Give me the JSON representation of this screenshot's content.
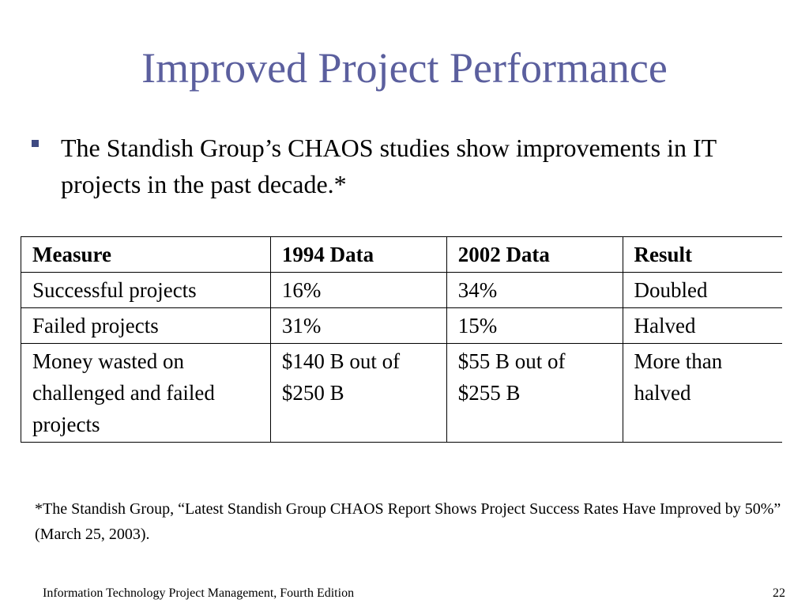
{
  "slide": {
    "title": "Improved Project Performance",
    "bullet": "The Standish Group’s CHAOS studies show improvements in IT projects in the past decade.*",
    "bullet_color": "#3f4a82",
    "title_color": "#5b5f9e"
  },
  "table": {
    "headers": [
      "Measure",
      "1994 Data",
      "2002 Data",
      "Result"
    ],
    "rows": [
      [
        "Successful projects",
        "16%",
        "34%",
        "Doubled"
      ],
      [
        "Failed projects",
        "31%",
        "15%",
        "Halved"
      ],
      [
        "Money wasted on challenged and failed projects",
        "$140 B out of $250 B",
        "$55 B out of $255 B",
        "More than halved"
      ]
    ]
  },
  "footnote": "*The Standish Group, “Latest Standish Group CHAOS Report Shows Project Success Rates Have Improved by 50%” (March 25, 2003).",
  "footer": {
    "left": "Information Technology Project Management, Fourth Edition",
    "page_number": "22"
  }
}
